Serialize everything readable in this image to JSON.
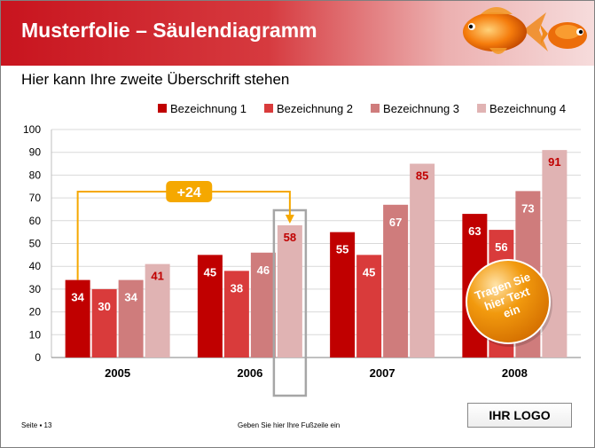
{
  "slide": {
    "title": "Musterfolie – Säulendiagramm",
    "subtitle": "Hier kann Ihre zweite Überschrift stehen"
  },
  "chart_data": {
    "type": "bar",
    "categories": [
      "2005",
      "2006",
      "2007",
      "2008"
    ],
    "series": [
      {
        "name": "Bezeichnung 1",
        "color": "#c00000",
        "values": [
          34,
          45,
          55,
          63
        ]
      },
      {
        "name": "Bezeichnung 2",
        "color": "#d93b3b",
        "values": [
          30,
          38,
          45,
          56
        ]
      },
      {
        "name": "Bezeichnung 3",
        "color": "#cf7c7c",
        "values": [
          34,
          46,
          67,
          73
        ]
      },
      {
        "name": "Bezeichnung 4",
        "color": "#e0b3b3",
        "values": [
          41,
          58,
          85,
          91
        ]
      }
    ],
    "ylim": [
      0,
      100
    ],
    "yticks": [
      0,
      10,
      20,
      30,
      40,
      50,
      60,
      70,
      80,
      90,
      100
    ],
    "grid": true,
    "legend_position": "top-right",
    "annotations": {
      "difference_label": "+24",
      "difference_color": "#f5a800",
      "highlighted_bar": {
        "category": "2006",
        "series": "Bezeichnung 4"
      },
      "badge_text": [
        "Tragen Sie",
        "hier Text",
        "ein"
      ],
      "badge_color": "#f29a0e"
    }
  },
  "footer": {
    "page_label": "Seite ▪ 13",
    "footer_text": "Geben Sie hier Ihre Fußzeile ein",
    "logo_text": "IHR LOGO"
  }
}
